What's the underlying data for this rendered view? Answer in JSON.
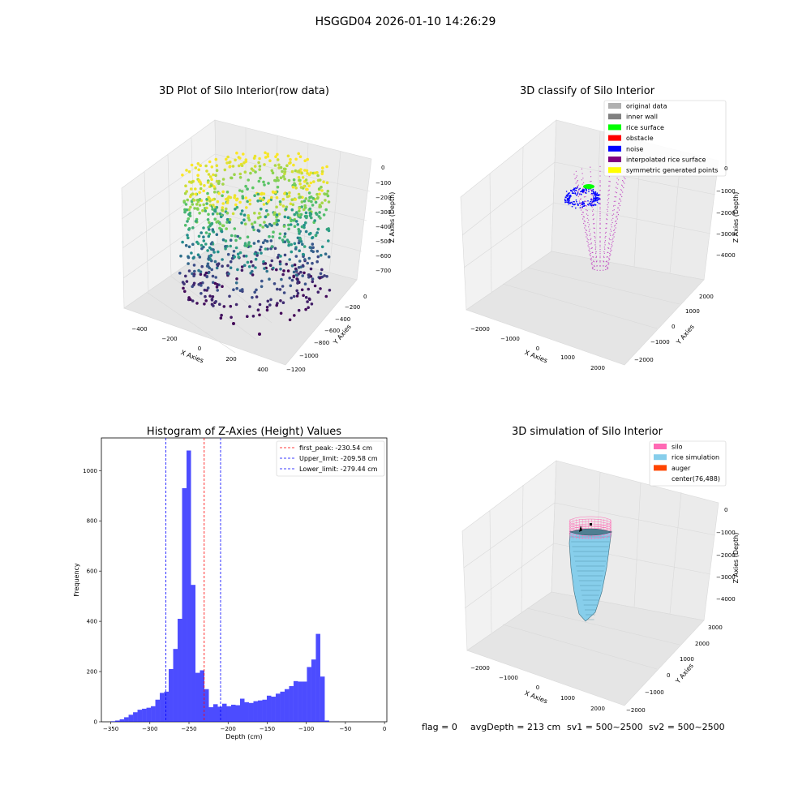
{
  "figure": {
    "suptitle": "HSGGD04 2026-01-10 14:26:29",
    "status": {
      "flag": "flag = 0",
      "avg_depth": "avgDepth = 213 cm",
      "sv1": "sv1 = 500~2500",
      "sv2": "sv2 = 500~2500"
    }
  },
  "panels": {
    "raw": {
      "title": "3D Plot of Silo Interior(row data)",
      "xlabel": "X Axies",
      "ylabel": "Y Axies",
      "zlabel": "Z Axies (Depth)",
      "xticks": [
        "−400",
        "−200",
        "0",
        "200",
        "400"
      ],
      "yticks": [
        "0",
        "−200",
        "−400",
        "−600",
        "−800",
        "−1000",
        "−1200"
      ],
      "zticks": [
        "0",
        "−100",
        "−200",
        "−300",
        "−400",
        "−500",
        "−600",
        "−700"
      ]
    },
    "classify": {
      "title": "3D classify of Silo Interior",
      "xlabel": "X Axies",
      "ylabel": "Y Axies",
      "zlabel": "Z Axies (Depth)",
      "xticks": [
        "−2000",
        "−1000",
        "0",
        "1000",
        "2000"
      ],
      "yticks": [
        "2000",
        "1000",
        "0",
        "−1000",
        "−2000"
      ],
      "zticks": [
        "0",
        "−1000",
        "−2000",
        "−3000",
        "−4000"
      ],
      "legend": [
        {
          "label": "original data",
          "color": "#b0b0b0"
        },
        {
          "label": "inner wall",
          "color": "#808080"
        },
        {
          "label": "rice surface",
          "color": "#00ff00"
        },
        {
          "label": "obstacle",
          "color": "#ff0000"
        },
        {
          "label": "noise",
          "color": "#0000ff"
        },
        {
          "label": "interpolated rice surface",
          "color": "#800080"
        },
        {
          "label": "symmetric generated points",
          "color": "#ffff00"
        }
      ]
    },
    "simulation": {
      "title": "3D simulation of Silo Interior",
      "xlabel": "X Axies",
      "ylabel": "Y Axies",
      "zlabel": "Z Axies (Depth)",
      "xticks": [
        "−2000",
        "−1000",
        "0",
        "1000",
        "2000"
      ],
      "yticks": [
        "3000",
        "2000",
        "1000",
        "0",
        "−1000",
        "−2000"
      ],
      "zticks": [
        "0",
        "−1000",
        "−2000",
        "−3000",
        "−4000"
      ],
      "legend": [
        {
          "label": "silo",
          "color": "#ff69b4"
        },
        {
          "label": "rice simulation",
          "color": "#87ceeb"
        },
        {
          "label": "auger",
          "color": "#ff4500"
        },
        {
          "label": "center(76,488)",
          "color": "#ffffff"
        }
      ]
    }
  },
  "chart_data": [
    {
      "type": "bar",
      "title": "Histogram of Z-Axies (Height) Values",
      "xlabel": "Depth (cm)",
      "ylabel": "Frequency",
      "xlim": [
        -362,
        3
      ],
      "ylim": [
        0,
        1130
      ],
      "xticks": [
        -350,
        -300,
        -250,
        -200,
        -150,
        -100,
        -50,
        0
      ],
      "yticks": [
        0,
        200,
        400,
        600,
        800,
        1000
      ],
      "bin_width": 5.7,
      "bin_start": -350,
      "bar_color": "#0000ff",
      "counts": [
        2,
        5,
        10,
        18,
        28,
        38,
        48,
        52,
        56,
        62,
        88,
        115,
        120,
        210,
        290,
        410,
        930,
        1080,
        545,
        195,
        205,
        130,
        58,
        70,
        60,
        72,
        62,
        68,
        66,
        92,
        78,
        75,
        82,
        85,
        88,
        104,
        100,
        112,
        120,
        130,
        142,
        162,
        160,
        160,
        218,
        248,
        350,
        180,
        5
      ],
      "vlines": [
        {
          "x": -230.54,
          "color": "#ff0000",
          "label": "first_peak: -230.54 cm"
        },
        {
          "x": -209.58,
          "color": "#0000ff",
          "label": "Upper_limit: -209.58 cm"
        },
        {
          "x": -279.44,
          "color": "#0000ff",
          "label": "Lower_limit: -279.44 cm"
        }
      ],
      "legend": "top-right"
    }
  ]
}
